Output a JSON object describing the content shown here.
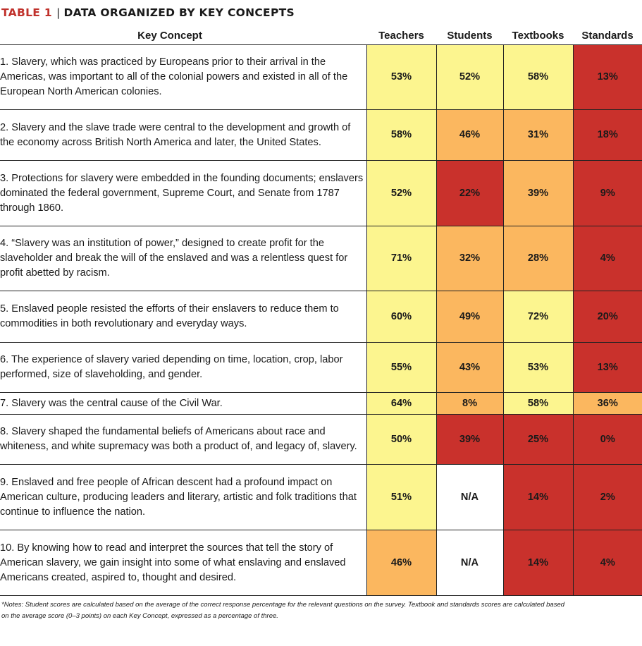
{
  "title": {
    "label": "TABLE 1",
    "separator": "|",
    "text": "DATA ORGANIZED BY KEY CONCEPTS"
  },
  "columns": [
    "Key Concept",
    "Teachers",
    "Students",
    "Textbooks",
    "Standards"
  ],
  "colors": {
    "yellow": "#fcf58f",
    "orange": "#fbb75f",
    "red": "#c9312c",
    "white": "#ffffff"
  },
  "rows": [
    {
      "concept": "1. Slavery, which was practiced by Europeans prior to their arrival in the Americas, was important to all of the colonial powers and existed in all of the European North American colonies.",
      "values": [
        "53%",
        "52%",
        "58%",
        "13%"
      ],
      "colors": [
        "yellow",
        "yellow",
        "yellow",
        "red"
      ]
    },
    {
      "concept": "2. Slavery and the slave trade were central to the development and growth of the economy across British North America and later, the United States.",
      "values": [
        "58%",
        "46%",
        "31%",
        "18%"
      ],
      "colors": [
        "yellow",
        "orange",
        "orange",
        "red"
      ]
    },
    {
      "concept": "3. Protections for slavery were embedded in the founding documents; enslavers dominated the federal government, Supreme Court, and Senate from 1787 through 1860.",
      "values": [
        "52%",
        "22%",
        "39%",
        "9%"
      ],
      "colors": [
        "yellow",
        "red",
        "orange",
        "red"
      ]
    },
    {
      "concept": "4. “Slavery was an institution of power,” designed to create profit for the slaveholder and break the will of the enslaved and was a relentless quest for profit abetted by racism.",
      "values": [
        "71%",
        "32%",
        "28%",
        "4%"
      ],
      "colors": [
        "yellow",
        "orange",
        "orange",
        "red"
      ]
    },
    {
      "concept": "5. Enslaved people resisted the efforts of their enslavers to reduce them to commodities in both revolutionary and everyday ways.",
      "values": [
        "60%",
        "49%",
        "72%",
        "20%"
      ],
      "colors": [
        "yellow",
        "orange",
        "yellow",
        "red"
      ]
    },
    {
      "concept": "6. The experience of slavery varied depending on time, location, crop, labor performed, size of slaveholding, and gender.",
      "values": [
        "55%",
        "43%",
        "53%",
        "13%"
      ],
      "colors": [
        "yellow",
        "orange",
        "yellow",
        "red"
      ]
    },
    {
      "concept": "7. Slavery was the central cause of the Civil War.",
      "values": [
        "64%",
        "8%",
        "58%",
        "36%"
      ],
      "colors": [
        "yellow",
        "orange",
        "yellow",
        "orange"
      ]
    },
    {
      "concept": "8. Slavery shaped the fundamental beliefs of Americans about race and whiteness, and white supremacy was both a product of, and legacy of, slavery.",
      "values": [
        "50%",
        "39%",
        "25%",
        "0%"
      ],
      "colors": [
        "yellow",
        "red",
        "red",
        "red"
      ]
    },
    {
      "concept": "9. Enslaved and free people of African descent had a profound impact on American culture, producing leaders and literary, artistic and folk traditions that continue to influence the nation.",
      "values": [
        "51%",
        "N/A",
        "14%",
        "2%"
      ],
      "colors": [
        "yellow",
        "white",
        "red",
        "red"
      ]
    },
    {
      "concept": "10. By knowing how to read and interpret the sources that tell the story of American slavery, we gain insight into some of what enslaving and enslaved Americans created, aspired to, thought and desired.",
      "values": [
        "46%",
        "N/A",
        "14%",
        "4%"
      ],
      "colors": [
        "orange",
        "white",
        "red",
        "red"
      ]
    }
  ],
  "notes": "*Notes: Student scores are calculated based on the average of the correct response percentage for the relevant questions on the survey. Textbook and standards scores are calculated based on the average score (0–3 points) on each Key Concept, expressed as a percentage of three."
}
